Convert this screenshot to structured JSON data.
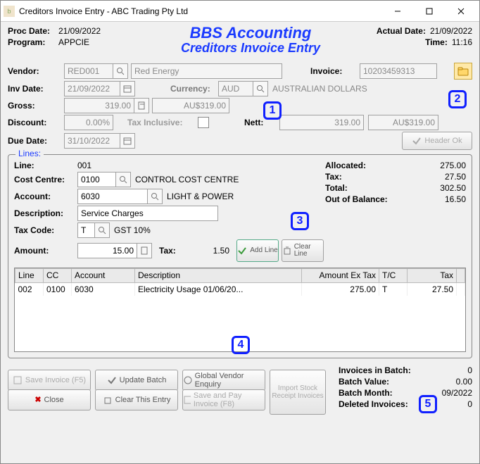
{
  "window": {
    "title": "Creditors Invoice Entry - ABC Trading Pty Ltd"
  },
  "header": {
    "proc_date_label": "Proc Date:",
    "proc_date": "21/09/2022",
    "program_label": "Program:",
    "program": "APPCIE",
    "actual_date_label": "Actual Date:",
    "actual_date": "21/09/2022",
    "time_label": "Time:",
    "time": "11:16",
    "title1": "BBS Accounting",
    "title2": "Creditors Invoice Entry"
  },
  "form": {
    "vendor_label": "Vendor:",
    "vendor_code": "RED001",
    "vendor_name": "Red Energy",
    "invoice_label": "Invoice:",
    "invoice_no": "10203459313",
    "inv_date_label": "Inv Date:",
    "inv_date": "21/09/2022",
    "currency_label": "Currency:",
    "currency_code": "AUD",
    "currency_name": "AUSTRALIAN DOLLARS",
    "gross_label": "Gross:",
    "gross": "319.00",
    "gross_fx": "AU$319.00",
    "discount_label": "Discount:",
    "discount": "0.00%",
    "tax_inclusive_label": "Tax Inclusive:",
    "nett_label": "Nett:",
    "nett": "319.00",
    "nett_fx": "AU$319.00",
    "due_date_label": "Due Date:",
    "due_date": "31/10/2022",
    "header_ok_label": "Header Ok"
  },
  "lines": {
    "legend": "Lines:",
    "line_label": "Line:",
    "line_no": "001",
    "cost_centre_label": "Cost Centre:",
    "cost_centre": "0100",
    "cost_centre_name": "CONTROL COST CENTRE",
    "account_label": "Account:",
    "account": "6030",
    "account_name": "LIGHT & POWER",
    "description_label": "Description:",
    "description": "Service Charges",
    "tax_code_label": "Tax Code:",
    "tax_code": "T",
    "tax_code_name": "GST 10%",
    "amount_label": "Amount:",
    "amount": "15.00",
    "tax_label": "Tax:",
    "tax": "1.50",
    "add_line_label": "Add Line",
    "clear_line_label": "Clear Line",
    "allocated_label": "Allocated:",
    "allocated": "275.00",
    "tax_total_label": "Tax:",
    "tax_total": "27.50",
    "total_label": "Total:",
    "total": "302.50",
    "oob_label": "Out of Balance:",
    "oob": "16.50",
    "grid": {
      "cols": {
        "line": "Line",
        "cc": "CC",
        "account": "Account",
        "desc": "Description",
        "amt": "Amount Ex Tax",
        "tc": "T/C",
        "tax": "Tax"
      },
      "rows": [
        {
          "line": "002",
          "cc": "0100",
          "account": "6030",
          "desc": "Electricity Usage 01/06/20...",
          "amt": "275.00",
          "tc": "T",
          "tax": "27.50"
        }
      ]
    }
  },
  "footer": {
    "save_invoice": "Save Invoice (F5)",
    "update_batch": "Update Batch",
    "global_vendor": "Global Vendor Enquiry",
    "import_stock": "Import Stock Receipt Invoices",
    "close": "Close",
    "clear_entry": "Clear This Entry",
    "save_pay": "Save and Pay Invoice (F8)",
    "invoices_in_batch_label": "Invoices in Batch:",
    "invoices_in_batch": "0",
    "batch_value_label": "Batch Value:",
    "batch_value": "0.00",
    "batch_month_label": "Batch Month:",
    "batch_month": "09/2022",
    "deleted_invoices_label": "Deleted Invoices:",
    "deleted_invoices": "0"
  },
  "callouts": {
    "1": "1",
    "2": "2",
    "3": "3",
    "4": "4",
    "5": "5"
  },
  "colors": {
    "accent": "#1a3aff",
    "callout": "#1020ff",
    "window_bg": "#f0f0f0"
  }
}
